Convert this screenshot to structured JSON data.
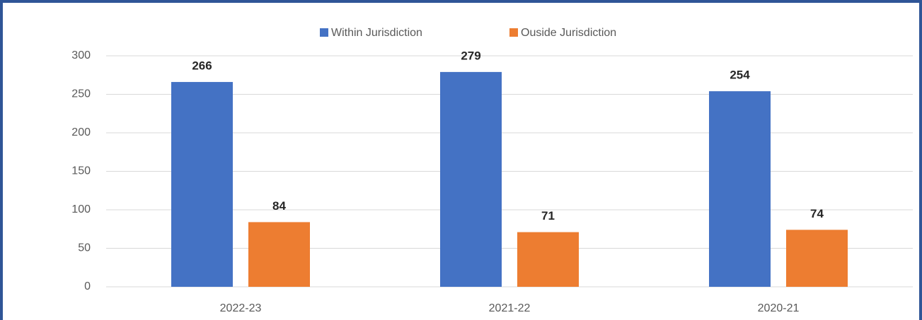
{
  "chart_data": {
    "type": "bar",
    "categories": [
      "2022-23",
      "2021-22",
      "2020-21"
    ],
    "series": [
      {
        "name": "Within Jurisdiction",
        "color": "#4472c4",
        "values": [
          266,
          279,
          254
        ]
      },
      {
        "name": "Ouside Jurisdiction",
        "color": "#ed7d31",
        "values": [
          84,
          71,
          74
        ]
      }
    ],
    "ylim": [
      0,
      300
    ],
    "yticks": [
      0,
      50,
      100,
      150,
      200,
      250,
      300
    ],
    "grid": true,
    "legend": "top"
  }
}
